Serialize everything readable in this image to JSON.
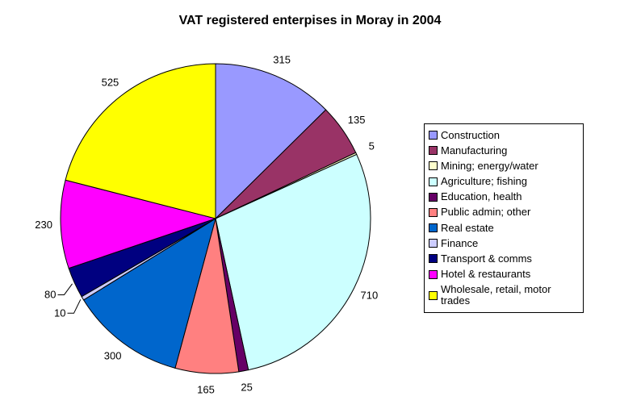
{
  "chart_data": {
    "type": "pie",
    "title": "VAT registered enterpises in Moray in 2004",
    "total": 2500,
    "data_labels": "value",
    "legend_position": "right",
    "start_angle_deg": 0,
    "direction": "clockwise",
    "background": "#FFFFFF",
    "text_color": "#000000",
    "slice_border_color": "#000000",
    "legend_border_color": "#000000",
    "series": [
      {
        "label": "Construction",
        "value": 315,
        "color": "#9999FF"
      },
      {
        "label": "Manufacturing",
        "value": 135,
        "color": "#993366"
      },
      {
        "label": "Mining; energy/water",
        "value": 5,
        "color": "#FFFFCC"
      },
      {
        "label": "Agriculture; fishing",
        "value": 710,
        "color": "#CCFFFF"
      },
      {
        "label": "Education, health",
        "value": 25,
        "color": "#660066"
      },
      {
        "label": "Public admin; other",
        "value": 165,
        "color": "#FF8080"
      },
      {
        "label": "Real estate",
        "value": 300,
        "color": "#0066CC"
      },
      {
        "label": "Finance",
        "value": 10,
        "color": "#CCCCFF",
        "leader_line": true
      },
      {
        "label": "Transport & comms",
        "value": 80,
        "color": "#000080",
        "leader_line": true
      },
      {
        "label": "Hotel & restaurants",
        "value": 230,
        "color": "#FF00FF"
      },
      {
        "label": "Wholesale, retail, motor trades",
        "value": 525,
        "color": "#FFFF00"
      }
    ]
  }
}
